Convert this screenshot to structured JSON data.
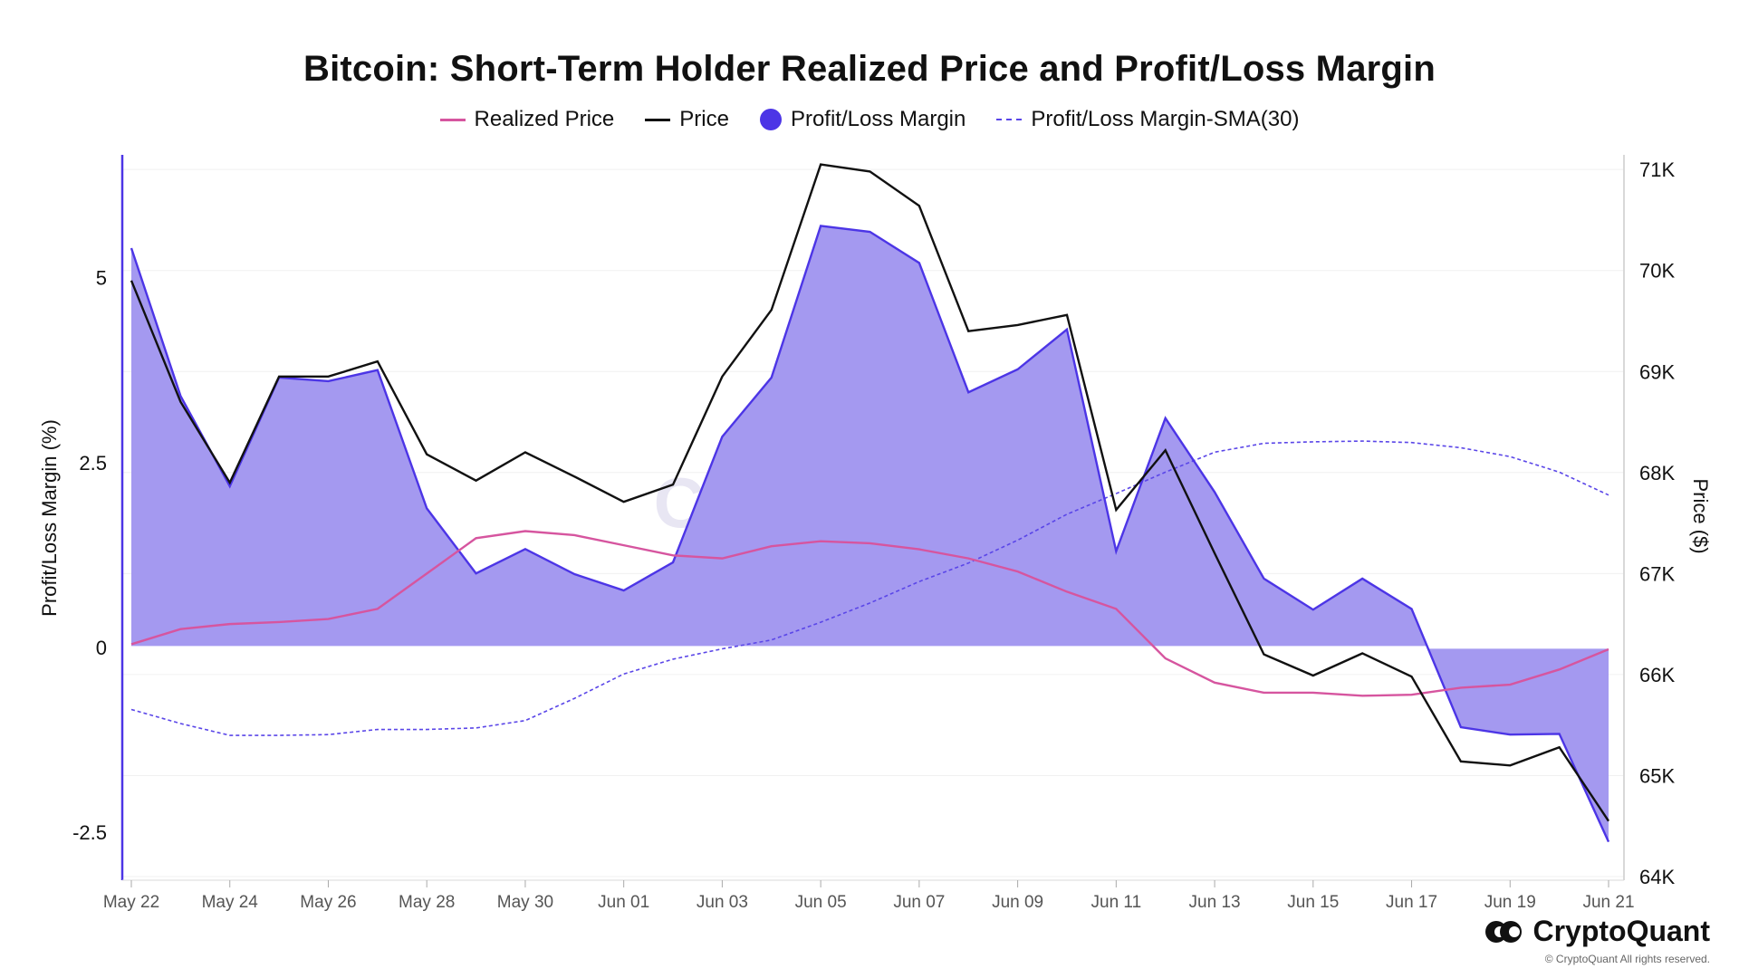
{
  "chart_data": {
    "type": "line",
    "title": "Bitcoin: Short-Term Holder Realized Price and Profit/Loss Margin",
    "ylabel_left": "Profit/Loss Margin (%)",
    "ylabel_right": "Price ($)",
    "y_left_ticks": [
      "5",
      "2.5",
      "0",
      "-2.5"
    ],
    "y_left_tick_values": [
      5,
      2.5,
      0,
      -2.5
    ],
    "y_left_range": [
      -3.1,
      6.6
    ],
    "y_right_ticks": [
      "71K",
      "70K",
      "69K",
      "68K",
      "67K",
      "66K",
      "65K",
      "64K"
    ],
    "y_right_tick_values": [
      71000,
      70000,
      69000,
      68000,
      67000,
      66000,
      65000,
      64000
    ],
    "y_right_range": [
      64000,
      71100
    ],
    "x_ticks": [
      "May 22",
      "May 24",
      "May 26",
      "May 28",
      "May 30",
      "Jun 01",
      "Jun 03",
      "Jun 05",
      "Jun 07",
      "Jun 09",
      "Jun 11",
      "Jun 13",
      "Jun 15",
      "Jun 17",
      "Jun 19",
      "Jun 21"
    ],
    "legend_position": "top-center",
    "watermark": "CryptoQuant",
    "series": [
      {
        "name": "Realized Price",
        "axis": "right",
        "color": "#d6559f",
        "values": [
          66300,
          66450,
          66500,
          66520,
          66550,
          66650,
          67000,
          67350,
          67420,
          67380,
          67280,
          67180,
          67150,
          67270,
          67320,
          67300,
          67240,
          67150,
          67020,
          66820,
          66650,
          66160,
          65920,
          65820,
          65820,
          65790,
          65800,
          65870,
          65900,
          66050,
          66250
        ]
      },
      {
        "name": "Price",
        "axis": "right",
        "color": "#111111",
        "values": [
          69900,
          68700,
          67900,
          68950,
          68950,
          69100,
          68180,
          67920,
          68200,
          67960,
          67710,
          67880,
          68950,
          69610,
          71050,
          70980,
          70640,
          69400,
          69460,
          69560,
          67630,
          68220,
          67200,
          66200,
          65990,
          66210,
          65980,
          65140,
          65100,
          65280,
          64550
        ]
      },
      {
        "name": "Profit/Loss Margin",
        "axis": "left",
        "color": "#4c35e6",
        "fill": "#a297f0",
        "values": [
          5.4,
          3.4,
          2.18,
          3.65,
          3.6,
          3.75,
          1.88,
          1.0,
          1.33,
          0.99,
          0.77,
          1.15,
          2.85,
          3.65,
          5.7,
          5.62,
          5.2,
          3.45,
          3.76,
          4.3,
          1.3,
          3.1,
          2.1,
          0.93,
          0.51,
          0.93,
          0.52,
          -1.08,
          -1.18,
          -1.17,
          -2.63
        ]
      },
      {
        "name": "Profit/Loss Margin-SMA(30)",
        "axis": "left",
        "color": "#5a46e8",
        "values": [
          -0.84,
          -1.03,
          -1.19,
          -1.19,
          -1.18,
          -1.11,
          -1.11,
          -1.09,
          -0.99,
          -0.69,
          -0.36,
          -0.16,
          -0.02,
          0.1,
          0.34,
          0.6,
          0.89,
          1.14,
          1.45,
          1.8,
          2.08,
          2.37,
          2.64,
          2.76,
          2.78,
          2.79,
          2.77,
          2.7,
          2.58,
          2.37,
          2.06
        ]
      }
    ]
  },
  "brand": {
    "name": "CryptoQuant",
    "copyright": "© CryptoQuant All rights reserved."
  },
  "colors": {
    "accent": "#4c35e6",
    "fill": "#a297f0",
    "realized": "#d6559f",
    "price": "#111111"
  }
}
